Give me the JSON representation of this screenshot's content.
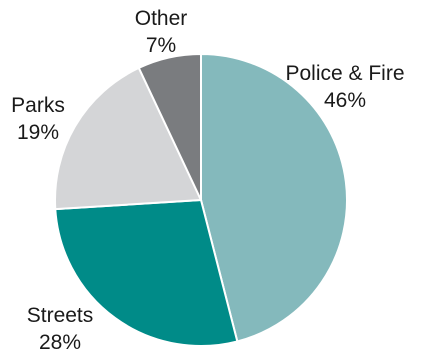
{
  "chart_data": {
    "type": "pie",
    "title": "",
    "series": [
      {
        "name": "Police & Fire",
        "value": 46,
        "label": "46%",
        "color": "#84b9bc"
      },
      {
        "name": "Streets",
        "value": 28,
        "label": "28%",
        "color": "#008b88"
      },
      {
        "name": "Parks",
        "value": 19,
        "label": "19%",
        "color": "#d4d5d7"
      },
      {
        "name": "Other",
        "value": 7,
        "label": "7%",
        "color": "#7a7c7f"
      }
    ],
    "start_angle_deg": 0,
    "direction": "clockwise",
    "legend": "none",
    "labels_position": "outside"
  }
}
